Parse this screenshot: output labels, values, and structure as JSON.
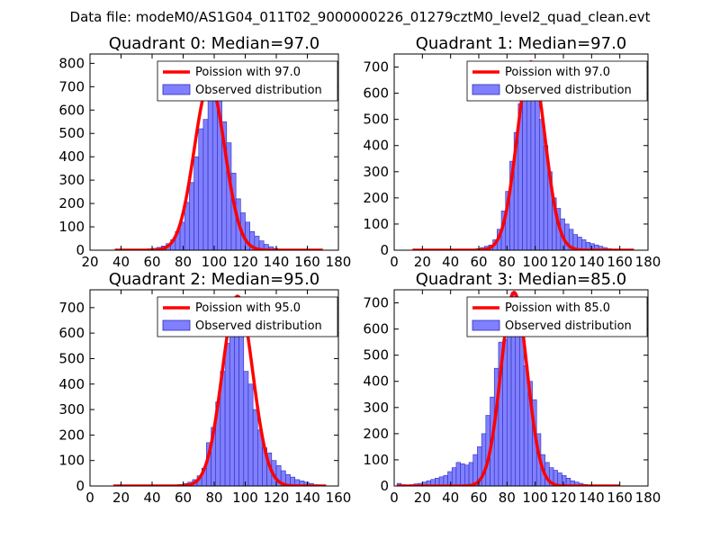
{
  "figure": {
    "suptitle": "Data file: modeM0/AS1G04_011T02_9000000226_01279cztM0_level2_quad_clean.evt"
  },
  "colors": {
    "bar_fill": "#8080ff",
    "bar_edge": "#2b2bbf",
    "model_line": "#ff0000",
    "axis": "#000000"
  },
  "chart_data": [
    {
      "type": "bar",
      "title": "Quadrant 0: Median=97.0",
      "xlim": [
        20,
        180
      ],
      "ylim": [
        0,
        840
      ],
      "xticks": [
        20,
        40,
        60,
        80,
        100,
        120,
        140,
        160,
        180
      ],
      "yticks": [
        0,
        100,
        200,
        300,
        400,
        500,
        600,
        700,
        800
      ],
      "legend": [
        "Poission with 97.0",
        "Observed distribution"
      ],
      "legend_loc": "upper right",
      "series": [
        {
          "name": "Observed distribution",
          "bin_edges": [
            36,
            39,
            42,
            45,
            48,
            51,
            54,
            57,
            60,
            63,
            66,
            69,
            72,
            75,
            78,
            81,
            84,
            87,
            90,
            93,
            96,
            99,
            102,
            105,
            108,
            111,
            114,
            117,
            120,
            123,
            126,
            129,
            132,
            135,
            138,
            141,
            144,
            147,
            150,
            153,
            156,
            159,
            162,
            165,
            168,
            171
          ],
          "counts": [
            0,
            0,
            1,
            1,
            2,
            3,
            4,
            6,
            8,
            12,
            18,
            28,
            45,
            80,
            120,
            205,
            290,
            400,
            520,
            560,
            700,
            780,
            650,
            550,
            460,
            330,
            220,
            160,
            120,
            80,
            60,
            40,
            25,
            15,
            8,
            4,
            2,
            1,
            1,
            0,
            0,
            0,
            0,
            0,
            0
          ]
        },
        {
          "name": "Poission with 97.0",
          "mean": 97,
          "peak": 715,
          "x_range": [
            36,
            170
          ]
        }
      ]
    },
    {
      "type": "bar",
      "title": "Quadrant 1: Median=97.0",
      "xlim": [
        0,
        180
      ],
      "ylim": [
        0,
        750
      ],
      "xticks": [
        0,
        20,
        40,
        60,
        80,
        100,
        120,
        140,
        160,
        180
      ],
      "yticks": [
        0,
        100,
        200,
        300,
        400,
        500,
        600,
        700
      ],
      "legend": [
        "Poission with 97.0",
        "Observed distribution"
      ],
      "legend_loc": "upper right",
      "series": [
        {
          "name": "Observed distribution",
          "bin_edges": [
            13,
            16,
            19,
            22,
            25,
            28,
            31,
            34,
            37,
            40,
            43,
            46,
            49,
            52,
            55,
            58,
            61,
            64,
            67,
            70,
            73,
            76,
            79,
            82,
            85,
            88,
            91,
            94,
            97,
            100,
            103,
            106,
            109,
            112,
            115,
            118,
            121,
            124,
            127,
            130,
            133,
            136,
            139,
            142,
            145,
            148,
            151,
            154,
            157,
            160,
            163,
            166,
            169
          ],
          "counts": [
            0,
            0,
            0,
            0,
            0,
            0,
            0,
            0,
            0,
            0,
            1,
            1,
            2,
            3,
            4,
            6,
            10,
            15,
            20,
            40,
            80,
            150,
            225,
            340,
            450,
            560,
            640,
            700,
            680,
            600,
            500,
            400,
            300,
            200,
            160,
            120,
            100,
            80,
            60,
            50,
            40,
            30,
            25,
            20,
            15,
            10,
            6,
            4,
            2,
            1,
            0,
            0
          ]
        },
        {
          "name": "Poission with 97.0",
          "mean": 97,
          "peak": 720,
          "x_range": [
            13,
            170
          ]
        }
      ]
    },
    {
      "type": "bar",
      "title": "Quadrant 2: Median=95.0",
      "xlim": [
        0,
        160
      ],
      "ylim": [
        0,
        770
      ],
      "xticks": [
        0,
        20,
        40,
        60,
        80,
        100,
        120,
        140,
        160
      ],
      "yticks": [
        0,
        100,
        200,
        300,
        400,
        500,
        600,
        700
      ],
      "legend": [
        "Poission with 95.0",
        "Observed distribution"
      ],
      "legend_loc": "upper right",
      "series": [
        {
          "name": "Observed distribution",
          "bin_edges": [
            15,
            18,
            21,
            24,
            27,
            30,
            33,
            36,
            39,
            42,
            45,
            48,
            51,
            54,
            57,
            60,
            63,
            66,
            69,
            72,
            75,
            78,
            81,
            84,
            87,
            90,
            93,
            96,
            99,
            102,
            105,
            108,
            111,
            114,
            117,
            120,
            123,
            126,
            129,
            132,
            135,
            138,
            141,
            144,
            147,
            150,
            153
          ],
          "counts": [
            0,
            0,
            0,
            0,
            0,
            0,
            0,
            0,
            0,
            0,
            1,
            2,
            3,
            4,
            6,
            10,
            15,
            25,
            40,
            70,
            170,
            230,
            330,
            450,
            560,
            620,
            700,
            640,
            450,
            400,
            300,
            220,
            150,
            130,
            100,
            80,
            60,
            45,
            35,
            25,
            20,
            15,
            10,
            5,
            2,
            1
          ]
        },
        {
          "name": "Poission with 95.0",
          "mean": 95,
          "peak": 745,
          "x_range": [
            15,
            152
          ]
        }
      ]
    },
    {
      "type": "bar",
      "title": "Quadrant 3: Median=85.0",
      "xlim": [
        0,
        180
      ],
      "ylim": [
        0,
        750
      ],
      "xticks": [
        0,
        20,
        40,
        60,
        80,
        100,
        120,
        140,
        160,
        180
      ],
      "yticks": [
        0,
        100,
        200,
        300,
        400,
        500,
        600,
        700
      ],
      "legend": [
        "Poission with 85.0",
        "Observed distribution"
      ],
      "legend_loc": "upper right",
      "series": [
        {
          "name": "Observed distribution",
          "bin_edges": [
            2,
            5,
            8,
            11,
            14,
            17,
            20,
            23,
            26,
            29,
            32,
            35,
            38,
            41,
            44,
            47,
            50,
            53,
            56,
            59,
            62,
            65,
            68,
            71,
            74,
            77,
            80,
            83,
            86,
            89,
            92,
            95,
            98,
            101,
            104,
            107,
            110,
            113,
            116,
            119,
            122,
            125,
            128,
            131,
            134,
            137,
            140,
            143,
            146,
            149,
            152,
            155,
            158,
            161,
            164
          ],
          "counts": [
            10,
            5,
            3,
            5,
            8,
            10,
            15,
            20,
            25,
            30,
            35,
            40,
            55,
            70,
            90,
            85,
            80,
            90,
            120,
            150,
            200,
            270,
            340,
            450,
            550,
            560,
            650,
            740,
            700,
            610,
            460,
            400,
            330,
            200,
            120,
            90,
            70,
            60,
            50,
            40,
            30,
            20,
            15,
            10,
            6,
            4,
            2,
            1,
            0,
            0,
            0,
            0,
            0,
            0
          ]
        },
        {
          "name": "Poission with 85.0",
          "mean": 85,
          "peak": 740,
          "x_range": [
            2,
            160
          ]
        }
      ]
    }
  ]
}
